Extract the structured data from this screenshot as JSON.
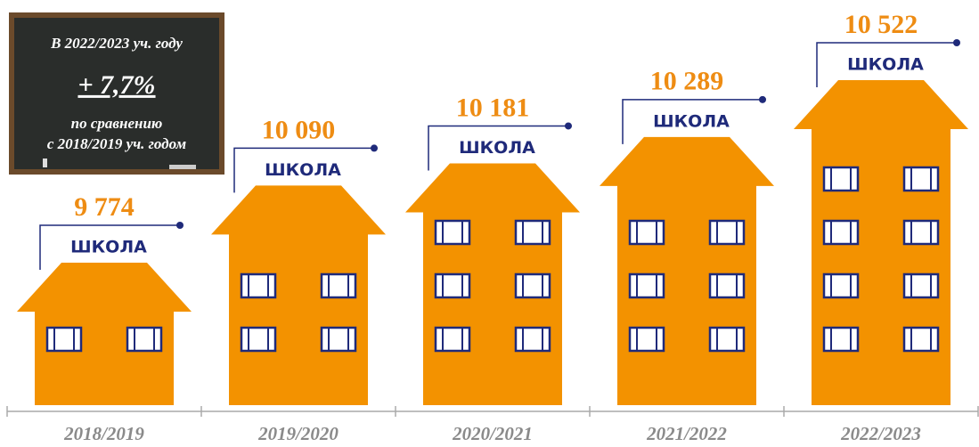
{
  "chart_data": {
    "type": "house",
    "categories": [
      "2018/2019",
      "2019/2020",
      "2020/2021",
      "2021/2022",
      "2022/2023"
    ],
    "values": [
      9774,
      10090,
      10181,
      10289,
      10522
    ],
    "value_labels": [
      "9 774",
      "10 090",
      "10 181",
      "10 289",
      "10 522"
    ],
    "house_label": "ШКОЛА",
    "color": "#f39200",
    "annotation": {
      "line1": "В 2022/2023 уч. году",
      "change": "+ 7,7%",
      "line2": "по сравнению",
      "line3": "с 2018/2019 уч. годом"
    }
  }
}
